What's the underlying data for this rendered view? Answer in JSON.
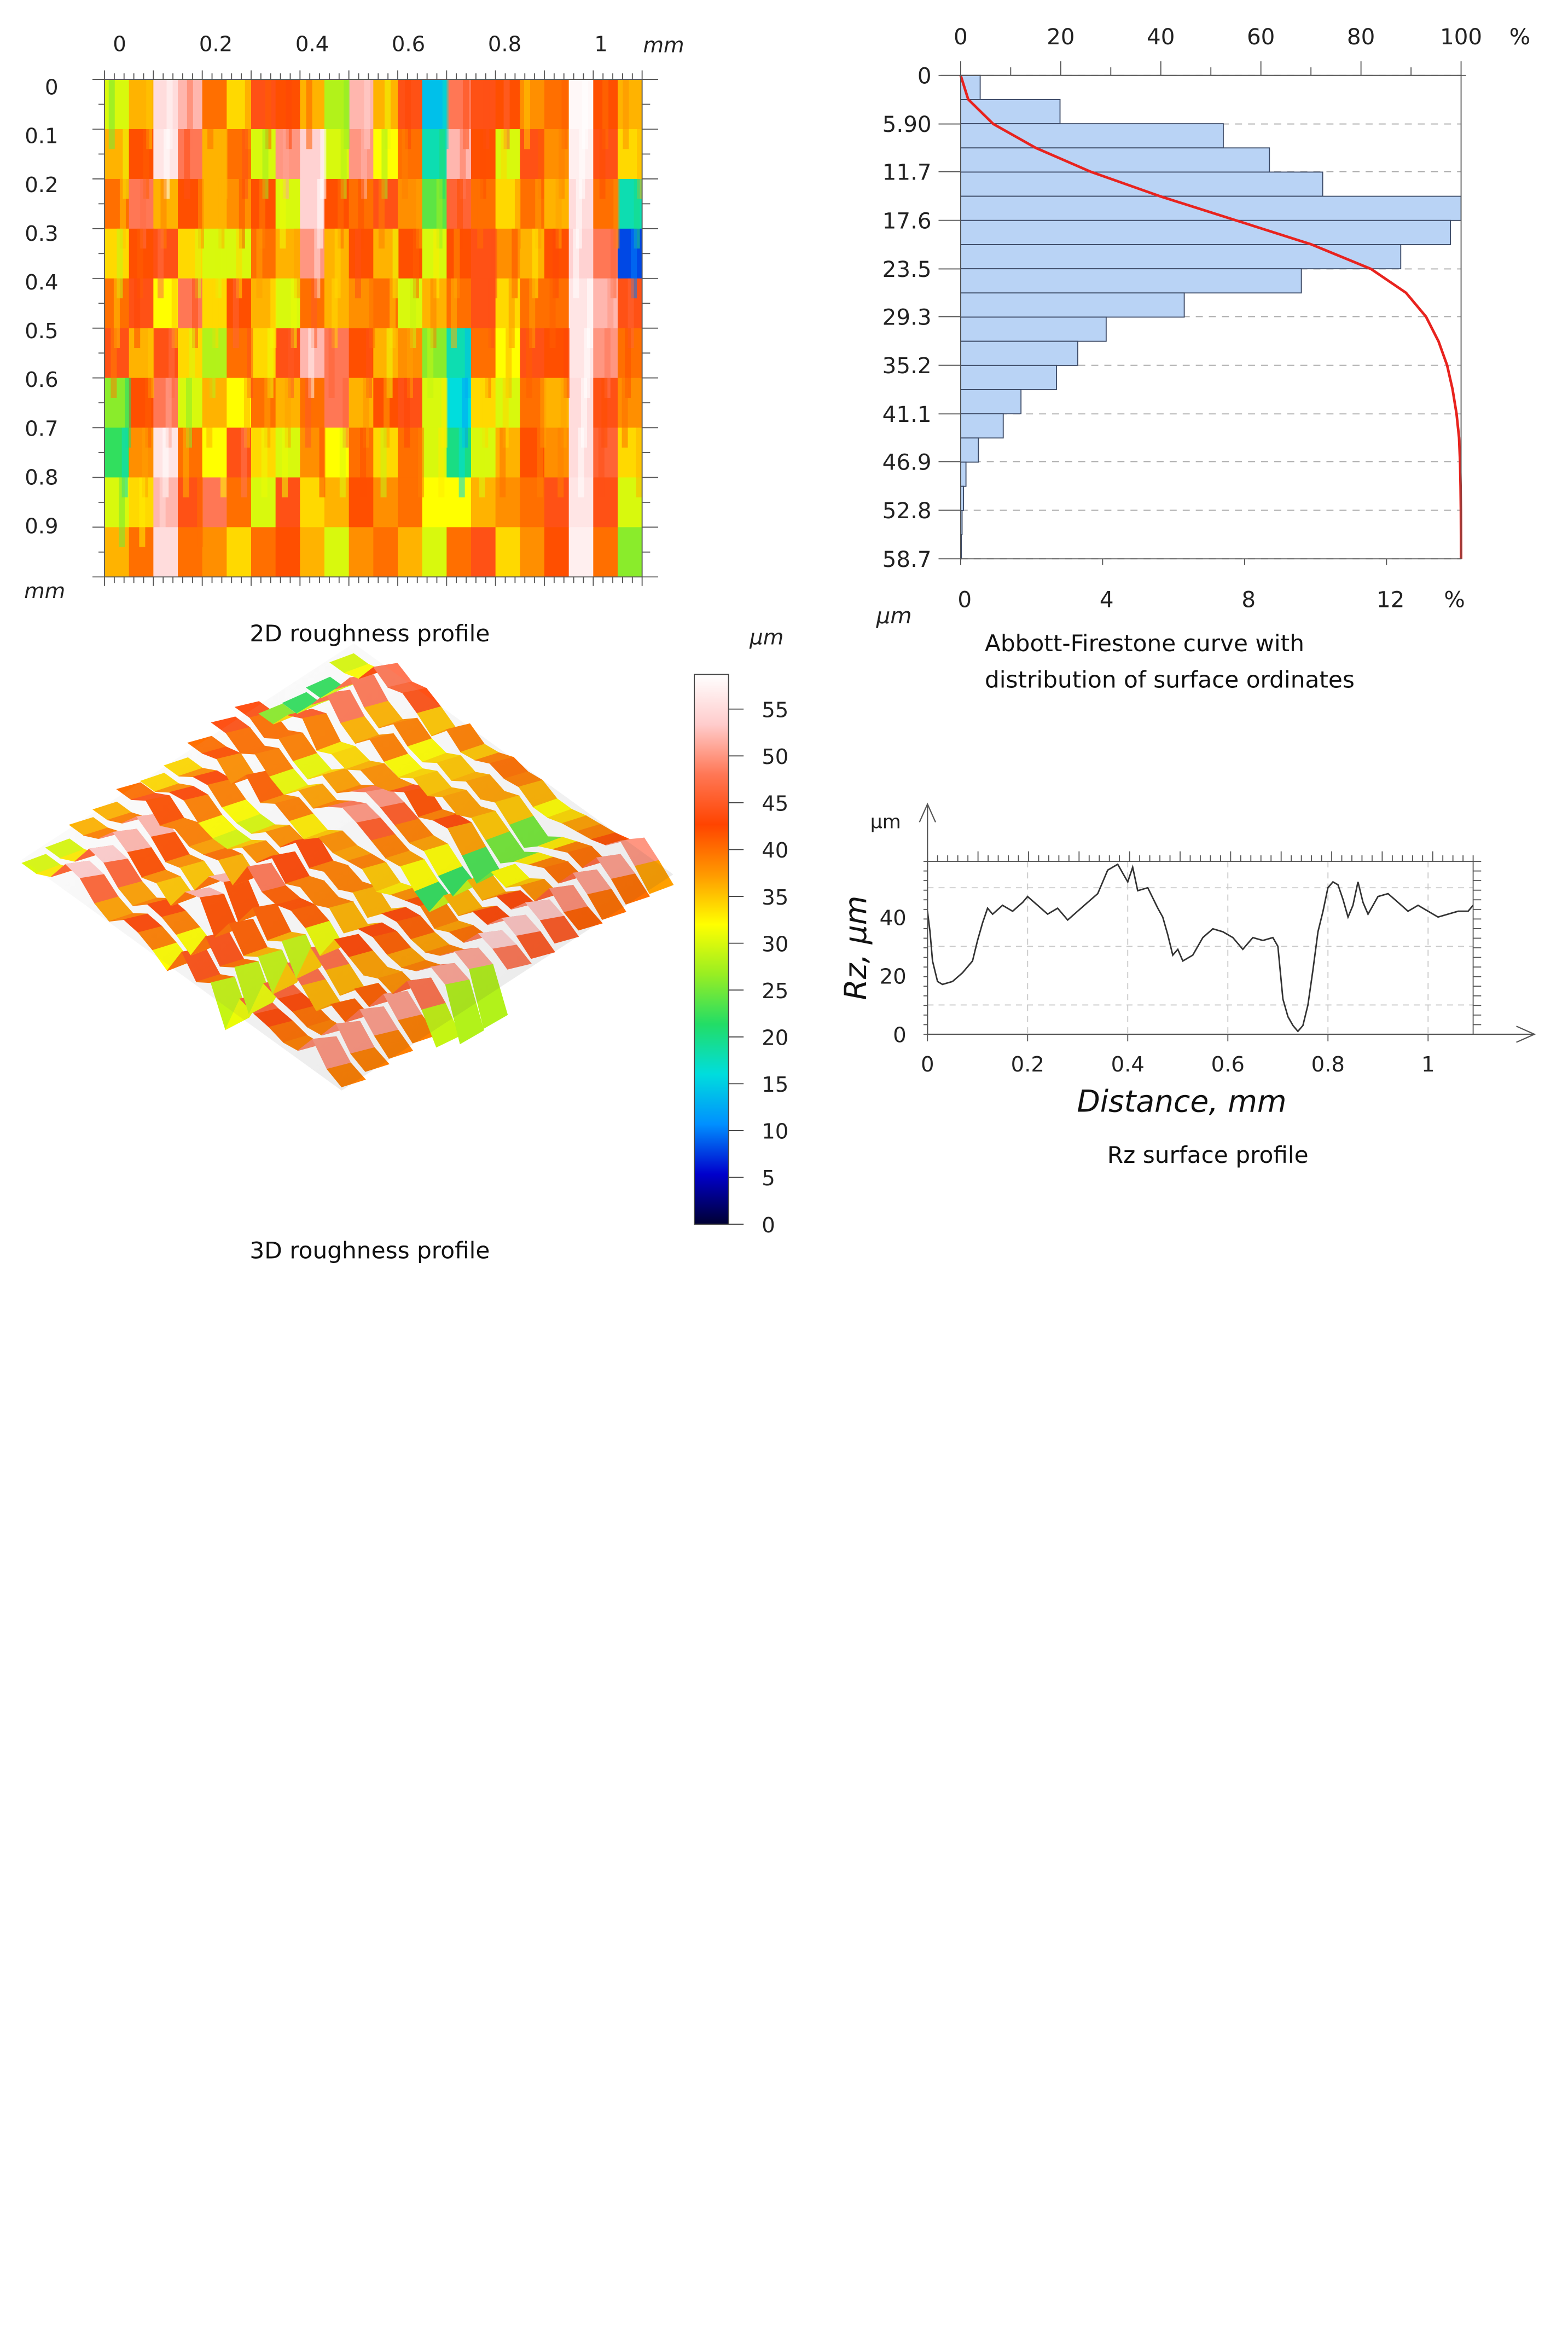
{
  "panels": {
    "map2d": {
      "caption": "2D roughness profile",
      "x_ticks": [
        "0",
        "0.2",
        "0.4",
        "0.6",
        "0.8",
        "1"
      ],
      "y_ticks": [
        "0",
        "0.1",
        "0.2",
        "0.3",
        "0.4",
        "0.5",
        "0.6",
        "0.7",
        "0.8",
        "0.9"
      ],
      "x_unit": "mm",
      "y_unit": "mm",
      "extent_mm": 1.1
    },
    "surface3d": {
      "caption": "3D roughness profile"
    },
    "colorbar": {
      "unit": "µm",
      "ticks": [
        "55",
        "50",
        "45",
        "40",
        "35",
        "30",
        "25",
        "20",
        "15",
        "10",
        "5",
        "0"
      ],
      "min": 0,
      "max": 58.7,
      "colors": [
        "#000033",
        "#0000cc",
        "#0090ff",
        "#00dddd",
        "#22dd66",
        "#99ee22",
        "#ffff00",
        "#ff9900",
        "#ff4400",
        "#ff7755",
        "#ffcccc",
        "#ffffff"
      ]
    },
    "abbott": {
      "caption_line1": "Abbott-Firestone curve with",
      "caption_line2": "distribution of surface ordinates"
    },
    "rz": {
      "caption": "Rz surface profile"
    }
  },
  "chart_data": [
    {
      "type": "bar",
      "orientation": "horizontal",
      "title": "Abbott-Firestone curve with distribution of surface ordinates",
      "ylabel": "µm",
      "y_ticks": [
        "0",
        "5.90",
        "11.7",
        "17.6",
        "23.5",
        "29.3",
        "35.2",
        "41.1",
        "46.9",
        "52.8",
        "58.7"
      ],
      "top_axis_label": "%",
      "top_ticks": [
        "0",
        "20",
        "40",
        "60",
        "80",
        "100"
      ],
      "bottom_axis_label": "%",
      "bottom_ticks": [
        "0",
        "4",
        "8",
        "12"
      ],
      "depth_range": [
        0,
        58.7
      ],
      "bins": 20,
      "bar_values_percent": [
        0.55,
        2.8,
        7.4,
        8.7,
        10.2,
        14.1,
        13.8,
        12.4,
        9.6,
        6.3,
        4.1,
        3.3,
        2.7,
        1.7,
        1.2,
        0.5,
        0.15,
        0.08,
        0.04,
        0.02
      ],
      "bar_range_percent": [
        0,
        14.1
      ],
      "bearing_curve": {
        "name": "Abbott-Firestone curve",
        "color": "#e8231e",
        "depth": [
          0,
          2.9,
          5.9,
          8.8,
          11.7,
          14.7,
          17.6,
          20.5,
          23.5,
          26.4,
          29.3,
          32.3,
          35.2,
          38.1,
          41.1,
          44.0,
          46.9,
          49.9,
          52.8,
          55.7,
          58.7
        ],
        "bearing_percent": [
          0,
          1.5,
          6.5,
          15,
          26,
          40,
          55,
          70,
          82,
          89,
          93,
          95.5,
          97.2,
          98.3,
          99.1,
          99.6,
          99.8,
          99.9,
          99.95,
          99.98,
          100
        ]
      }
    },
    {
      "type": "line",
      "title": "Rz surface profile",
      "xlabel": "Distance, mm",
      "ylabel": "Rz, µm",
      "y_unit": "µm",
      "x_ticks": [
        "0",
        "0.2",
        "0.4",
        "0.6",
        "0.8",
        "1"
      ],
      "y_ticks": [
        "0",
        "20",
        "40"
      ],
      "xlim": [
        0,
        1.09
      ],
      "ylim": [
        0,
        59
      ],
      "x": [
        0,
        0.005,
        0.01,
        0.02,
        0.03,
        0.05,
        0.07,
        0.09,
        0.1,
        0.11,
        0.12,
        0.13,
        0.15,
        0.17,
        0.19,
        0.2,
        0.22,
        0.24,
        0.26,
        0.28,
        0.3,
        0.32,
        0.34,
        0.35,
        0.36,
        0.37,
        0.38,
        0.39,
        0.4,
        0.41,
        0.42,
        0.44,
        0.46,
        0.47,
        0.48,
        0.49,
        0.5,
        0.51,
        0.53,
        0.55,
        0.57,
        0.59,
        0.61,
        0.63,
        0.65,
        0.67,
        0.69,
        0.7,
        0.71,
        0.72,
        0.73,
        0.74,
        0.75,
        0.76,
        0.77,
        0.78,
        0.79,
        0.8,
        0.81,
        0.82,
        0.83,
        0.84,
        0.85,
        0.86,
        0.87,
        0.88,
        0.9,
        0.92,
        0.94,
        0.96,
        0.98,
        1.0,
        1.02,
        1.04,
        1.06,
        1.08,
        1.09
      ],
      "y": [
        42,
        35,
        25,
        18,
        17,
        18,
        21,
        25,
        32,
        38,
        43,
        41,
        44,
        42,
        45,
        47,
        44,
        41,
        43,
        39,
        42,
        45,
        48,
        52,
        56,
        57,
        58,
        55,
        52,
        57,
        49,
        50,
        43,
        40,
        34,
        27,
        29,
        25,
        27,
        33,
        36,
        35,
        33,
        29,
        33,
        32,
        33,
        30,
        12,
        6,
        3,
        1,
        3,
        10,
        22,
        35,
        42,
        50,
        52,
        51,
        46,
        40,
        44,
        52,
        45,
        41,
        47,
        48,
        45,
        42,
        44,
        42,
        40,
        41,
        42,
        42,
        44
      ]
    },
    {
      "type": "heatmap",
      "title": "2D roughness profile",
      "xlabel": "mm",
      "ylabel": "mm",
      "x_range": [
        0,
        1.1
      ],
      "y_range": [
        0,
        1.0
      ],
      "value_unit": "µm",
      "value_range": [
        0,
        58.7
      ],
      "x_centers": [
        0.025,
        0.075,
        0.125,
        0.175,
        0.225,
        0.275,
        0.325,
        0.375,
        0.425,
        0.475,
        0.525,
        0.575,
        0.625,
        0.675,
        0.725,
        0.775,
        0.825,
        0.875,
        0.925,
        0.975,
        1.025,
        1.075
      ],
      "y_centers": [
        0.05,
        0.15,
        0.25,
        0.35,
        0.45,
        0.55,
        0.65,
        0.75,
        0.85,
        0.95
      ],
      "values": [
        [
          30,
          36,
          55,
          52,
          40,
          34,
          44,
          42,
          36,
          28,
          52,
          36,
          44,
          14,
          48,
          44,
          42,
          38,
          40,
          58,
          42,
          36
        ],
        [
          36,
          42,
          56,
          48,
          36,
          40,
          30,
          50,
          54,
          30,
          50,
          32,
          40,
          18,
          52,
          42,
          30,
          44,
          38,
          57,
          44,
          34
        ],
        [
          40,
          48,
          36,
          42,
          36,
          38,
          42,
          30,
          54,
          42,
          40,
          44,
          38,
          24,
          46,
          40,
          34,
          40,
          36,
          55,
          40,
          18
        ],
        [
          34,
          42,
          44,
          34,
          30,
          30,
          40,
          36,
          50,
          36,
          42,
          36,
          42,
          30,
          42,
          44,
          38,
          36,
          42,
          54,
          48,
          8
        ],
        [
          40,
          44,
          32,
          48,
          34,
          42,
          36,
          30,
          40,
          36,
          38,
          40,
          30,
          36,
          40,
          44,
          34,
          40,
          40,
          56,
          52,
          44
        ],
        [
          44,
          36,
          44,
          34,
          28,
          40,
          34,
          44,
          52,
          48,
          42,
          36,
          38,
          26,
          18,
          40,
          32,
          44,
          42,
          56,
          50,
          40
        ],
        [
          26,
          42,
          48,
          30,
          36,
          32,
          40,
          36,
          40,
          48,
          36,
          42,
          44,
          30,
          16,
          34,
          30,
          40,
          36,
          55,
          44,
          38
        ],
        [
          22,
          38,
          56,
          40,
          32,
          44,
          34,
          30,
          38,
          32,
          40,
          34,
          40,
          30,
          20,
          30,
          36,
          42,
          38,
          55,
          46,
          34
        ],
        [
          30,
          34,
          52,
          44,
          48,
          40,
          30,
          44,
          34,
          36,
          42,
          38,
          40,
          32,
          32,
          36,
          38,
          40,
          44,
          56,
          44,
          30
        ],
        [
          36,
          40,
          55,
          40,
          38,
          34,
          40,
          42,
          36,
          30,
          38,
          40,
          36,
          30,
          40,
          44,
          34,
          38,
          42,
          57,
          40,
          26
        ]
      ]
    }
  ]
}
